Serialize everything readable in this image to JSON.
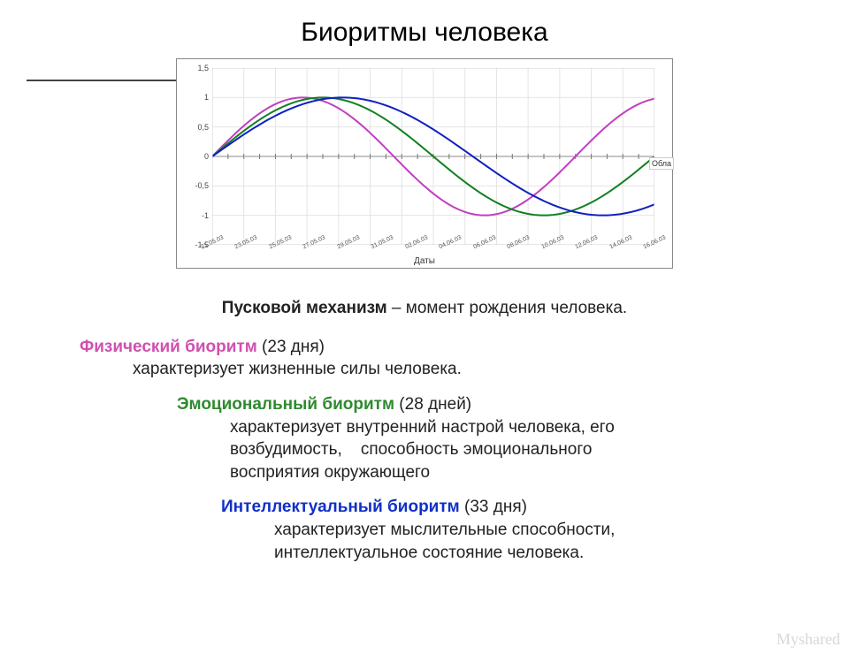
{
  "title": "Биоритмы человека",
  "chart": {
    "type": "line",
    "xlabel": "Даты",
    "side_label": "Обла",
    "ylim": [
      -1.5,
      1.5
    ],
    "yticks": [
      -1.5,
      -1,
      -0.5,
      0,
      0.5,
      1,
      1.5
    ],
    "xdomain_days": 28,
    "xtick_count": 14,
    "xtick_labels": [
      "21.05.03",
      "23.05.03",
      "25.05.03",
      "27.05.03",
      "29.05.03",
      "31.05.03",
      "02.06.03",
      "04.06.03",
      "06.06.03",
      "08.06.03",
      "10.06.03",
      "12.06.03",
      "14.06.03",
      "16.06.03"
    ],
    "grid_color": "#e4e4e4",
    "axis_color": "#cfcfcf",
    "background": "#ffffff",
    "series": [
      {
        "name": "physical",
        "label": "Физический",
        "color": "#c040c0",
        "period_days": 23
      },
      {
        "name": "emotional",
        "label": "Эмоциональный",
        "color": "#108020",
        "period_days": 28
      },
      {
        "name": "intellectual",
        "label": "Интеллектуальный",
        "color": "#1020c0",
        "period_days": 33
      }
    ],
    "line_width": 2
  },
  "trigger": {
    "bold": "Пусковой механизм",
    "rest": " – момент рождения человека."
  },
  "physical": {
    "head": "Физический биоритм",
    "days": " (23 дня)",
    "desc": "характеризует жизненные силы человека."
  },
  "emotional": {
    "head": "Эмоциональный биоритм",
    "days": " (28 дней)",
    "desc1": "характеризует внутренний настрой человека, его",
    "desc2": "возбудимость,    способность эмоционального",
    "desc3": "восприятия окружающего"
  },
  "intellectual": {
    "head": "Интеллектуальный биоритм",
    "days": " (33 дня)",
    "desc1": "характеризует мыслительные способности,",
    "desc2": "интеллектуальное состояние человека."
  },
  "watermark": "Myshared"
}
